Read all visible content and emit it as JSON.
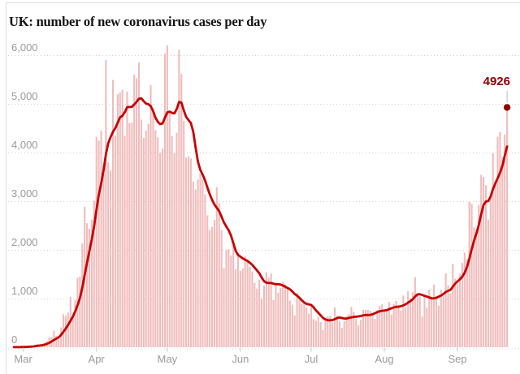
{
  "header": {
    "title": "UK: number of new coronavirus cases per day"
  },
  "annotation": {
    "label": "4926",
    "value": 4926,
    "leader_color": "#b9b9b9"
  },
  "chart_data": {
    "type": "bar",
    "title": "UK: number of new coronavirus cases per day",
    "xlabel": "",
    "ylabel": "",
    "x_start_date": "2020-02-26",
    "x_end_date": "2020-09-22",
    "x_tick_labels": [
      "Mar",
      "Apr",
      "May",
      "Jun",
      "Jul",
      "Aug",
      "Sep"
    ],
    "x_tick_day_index": [
      4,
      35,
      65,
      96,
      126,
      157,
      188
    ],
    "y_tick_labels": [
      "0",
      "1,000",
      "2,000",
      "3,000",
      "4,000",
      "5,000",
      "6,000"
    ],
    "y_tick_values": [
      0,
      1000,
      2000,
      3000,
      4000,
      5000,
      6000
    ],
    "ylim": [
      0,
      6230
    ],
    "grid": "horizontal dotted",
    "legend": "none",
    "bar_color": "#f0bcbc",
    "line_color": "#c70000",
    "dot_color": "#8b0000",
    "axis_text_color": "#9a9a9a",
    "line_description": "7-day rolling average of daily values, drawn as smooth red line",
    "last_point": {
      "date": "2020-09-22",
      "value": 4926
    },
    "values": [
      1,
      2,
      3,
      4,
      13,
      12,
      11,
      34,
      29,
      46,
      65,
      50,
      52,
      83,
      130,
      208,
      202,
      342,
      232,
      171,
      407,
      676,
      643,
      714,
      1035,
      665,
      967,
      1427,
      1452,
      2129,
      2885,
      2546,
      2433,
      2619,
      3009,
      4324,
      4244,
      4450,
      3735,
      5903,
      3802,
      3634,
      5491,
      4344,
      5195,
      5233,
      5288,
      4342,
      5252,
      4603,
      4617,
      5599,
      5525,
      5850,
      4676,
      4301,
      4451,
      4583,
      5386,
      4913,
      4463,
      4310,
      3996,
      4076,
      6032,
      6201,
      4806,
      4339,
      3985,
      4406,
      6111,
      5614,
      4649,
      3896,
      3923,
      3877,
      3403,
      3242,
      3446,
      3560,
      3450,
      3142,
      2711,
      2412,
      2472,
      2615,
      3287,
      2959,
      2405,
      1625,
      2004,
      2013,
      1887,
      2095,
      1604,
      1936,
      1570,
      1613,
      1871,
      1805,
      1650,
      1557,
      1326,
      1205,
      1387,
      1003,
      1266,
      1541,
      1425,
      1514,
      968,
      1279,
      1115,
      1218,
      1346,
      1295,
      1221,
      958,
      874,
      653,
      1118,
      1006,
      890,
      901,
      815,
      689,
      829,
      576,
      544,
      624,
      516,
      352,
      581,
      630,
      642,
      512,
      820,
      650,
      530,
      398,
      538,
      642,
      687,
      827,
      726,
      580,
      445,
      560,
      769,
      768,
      767,
      747,
      685,
      581,
      763,
      846,
      880,
      771,
      743,
      928,
      670,
      892,
      950,
      871,
      758,
      1062,
      816,
      1148,
      1009,
      1129,
      1441,
      1077,
      1040,
      634,
      1089,
      812,
      1182,
      1033,
      1288,
      1041,
      853,
      1184,
      1048,
      1522,
      1276,
      1108,
      1715,
      1406,
      1295,
      1508,
      1735,
      1940,
      1813,
      2988,
      2948,
      2460,
      2420,
      2919,
      3539,
      3497,
      3330,
      2621,
      3105,
      3991,
      3395,
      4322,
      4422,
      3899,
      4368,
      4926
    ]
  }
}
